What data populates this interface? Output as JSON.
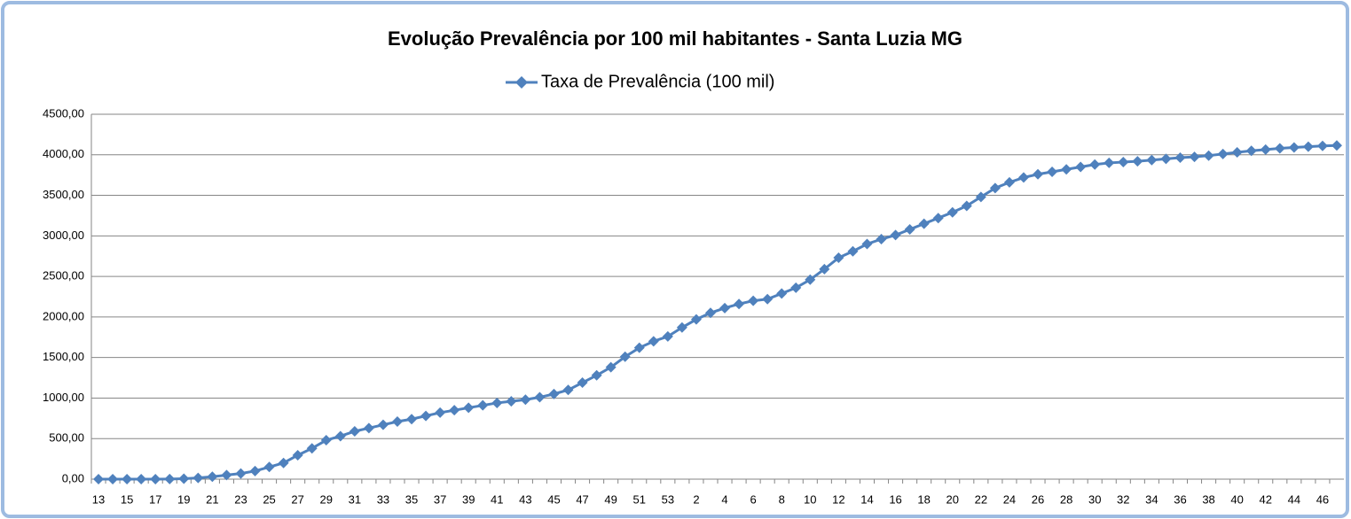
{
  "chart_data": {
    "type": "line",
    "title": "Evolução Prevalência por 100 mil habitantes - Santa Luzia MG",
    "categories": [
      "13",
      null,
      "15",
      null,
      "17",
      null,
      "19",
      null,
      "21",
      null,
      "23",
      null,
      "25",
      null,
      "27",
      null,
      "29",
      null,
      "31",
      null,
      "33",
      null,
      "35",
      null,
      "37",
      null,
      "39",
      null,
      "41",
      null,
      "43",
      null,
      "45",
      null,
      "47",
      null,
      "49",
      null,
      "51",
      null,
      "53",
      null,
      "2",
      null,
      "4",
      null,
      "6",
      null,
      "8",
      null,
      "10",
      null,
      "12",
      null,
      "14",
      null,
      "16",
      null,
      "18",
      null,
      "20",
      null,
      "22",
      null,
      "24",
      null,
      "26",
      null,
      "28",
      null,
      "30",
      null,
      "32",
      null,
      "34",
      null,
      "36",
      null,
      "38",
      null,
      "40",
      null,
      "42",
      null,
      "44",
      null,
      "46",
      null
    ],
    "series": [
      {
        "name": "Taxa de Prevalência (100 mil)",
        "color": "#4f81bd",
        "values": [
          0,
          0,
          0,
          0,
          0,
          2,
          5,
          15,
          30,
          50,
          70,
          100,
          150,
          200,
          295,
          380,
          480,
          530,
          590,
          630,
          670,
          710,
          740,
          780,
          820,
          850,
          880,
          910,
          940,
          960,
          980,
          1010,
          1050,
          1100,
          1190,
          1280,
          1380,
          1510,
          1620,
          1700,
          1760,
          1870,
          1970,
          2050,
          2110,
          2160,
          2200,
          2220,
          2290,
          2360,
          2460,
          2590,
          2730,
          2810,
          2900,
          2960,
          3010,
          3080,
          3150,
          3220,
          3290,
          3370,
          3480,
          3590,
          3660,
          3720,
          3760,
          3790,
          3820,
          3850,
          3880,
          3900,
          3910,
          3920,
          3935,
          3950,
          3965,
          3975,
          3990,
          4010,
          4030,
          4050,
          4065,
          4080,
          4090,
          4100,
          4110,
          4115
        ]
      }
    ],
    "ylim": [
      0,
      4500
    ],
    "yticks": [
      {
        "value": 0,
        "label": "0,00"
      },
      {
        "value": 500,
        "label": "500,00"
      },
      {
        "value": 1000,
        "label": "1000,00"
      },
      {
        "value": 1500,
        "label": "1500,00"
      },
      {
        "value": 2000,
        "label": "2000,00"
      },
      {
        "value": 2500,
        "label": "2500,00"
      },
      {
        "value": 3000,
        "label": "3000,00"
      },
      {
        "value": 3500,
        "label": "3500,00"
      },
      {
        "value": 4000,
        "label": "4000,00"
      },
      {
        "value": 4500,
        "label": "4500,00"
      }
    ],
    "grid": true,
    "legend": "top"
  }
}
